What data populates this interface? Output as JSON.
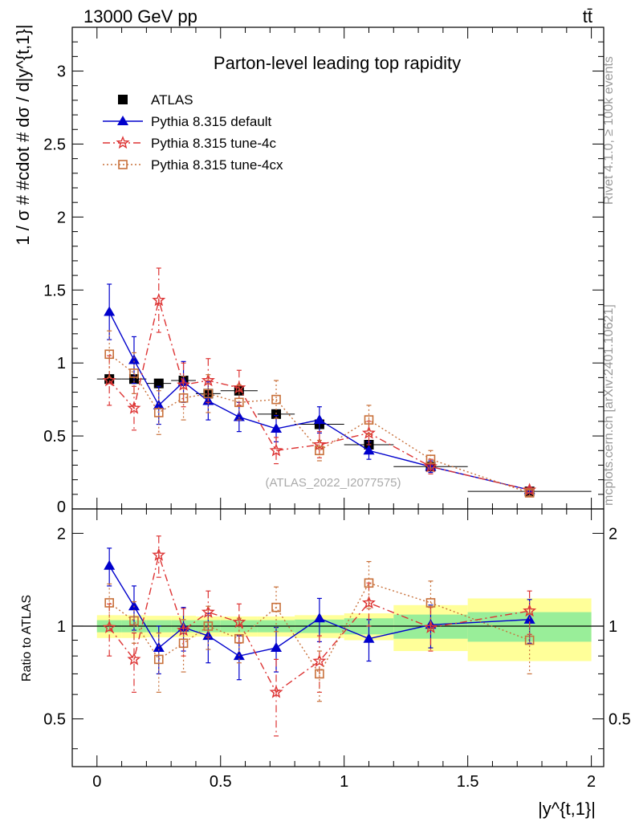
{
  "header": {
    "energy_label": "13000 GeV pp",
    "process_label": "tt̄"
  },
  "side_labels": {
    "rivet": "Rivet 4.1.0, ≥ 100k events",
    "mcplots": "mcplots.cern.ch [arXiv:2401.10621]"
  },
  "chart_data": [
    {
      "type": "scatter",
      "panel": "main",
      "title": "Parton-level leading top rapidity",
      "watermark": "(ATLAS_2022_I2077575)",
      "ylabel": "1 / σ # #cdot # dσ / d|y^{t,1}|",
      "xlim": [
        -0.1,
        2.05
      ],
      "ylim": [
        0,
        3.3
      ],
      "yticks": [
        {
          "value": 0.5,
          "label": "0.5"
        },
        {
          "value": 1,
          "label": "1"
        },
        {
          "value": 1.5,
          "label": "1.5"
        },
        {
          "value": 2,
          "label": "2"
        },
        {
          "value": 2.5,
          "label": "2.5"
        },
        {
          "value": 3,
          "label": "3"
        }
      ],
      "legend_position": "top-left",
      "series": [
        {
          "name": "ATLAS",
          "color": "#000000",
          "marker": "square-filled",
          "style": "points",
          "x": [
            0.05,
            0.15,
            0.25,
            0.35,
            0.45,
            0.575,
            0.725,
            0.9,
            1.1,
            1.35,
            1.75
          ],
          "y": [
            0.89,
            0.89,
            0.86,
            0.88,
            0.79,
            0.81,
            0.65,
            0.58,
            0.44,
            0.29,
            0.12
          ],
          "xerr": [
            0.05,
            0.05,
            0.05,
            0.05,
            0.05,
            0.075,
            0.075,
            0.1,
            0.1,
            0.15,
            0.25
          ]
        },
        {
          "name": "Pythia 8.315 default",
          "color": "#0000cc",
          "marker": "triangle-filled",
          "style": "solid",
          "x": [
            0.05,
            0.15,
            0.25,
            0.35,
            0.45,
            0.575,
            0.725,
            0.9,
            1.1,
            1.35,
            1.75
          ],
          "y": [
            1.35,
            1.02,
            0.71,
            0.87,
            0.74,
            0.63,
            0.55,
            0.61,
            0.4,
            0.29,
            0.13
          ],
          "err": [
            0.19,
            0.16,
            0.13,
            0.14,
            0.13,
            0.1,
            0.09,
            0.09,
            0.06,
            0.04,
            0.02
          ]
        },
        {
          "name": "Pythia 8.315 tune-4c",
          "color": "#dd3333",
          "marker": "star",
          "style": "dashdot",
          "x": [
            0.05,
            0.15,
            0.25,
            0.35,
            0.45,
            0.575,
            0.725,
            0.9,
            1.1,
            1.35,
            1.75
          ],
          "y": [
            0.88,
            0.69,
            1.43,
            0.85,
            0.88,
            0.83,
            0.4,
            0.44,
            0.52,
            0.29,
            0.13
          ],
          "err": [
            0.17,
            0.15,
            0.22,
            0.15,
            0.15,
            0.12,
            0.09,
            0.09,
            0.08,
            0.05,
            0.02
          ]
        },
        {
          "name": "Pythia 8.315 tune-4cx",
          "color": "#c8703a",
          "marker": "square-open",
          "style": "dotted",
          "x": [
            0.05,
            0.15,
            0.25,
            0.35,
            0.45,
            0.575,
            0.725,
            0.9,
            1.1,
            1.35,
            1.75
          ],
          "y": [
            1.06,
            0.93,
            0.66,
            0.76,
            0.79,
            0.73,
            0.75,
            0.4,
            0.61,
            0.34,
            0.11
          ],
          "err": [
            0.16,
            0.14,
            0.15,
            0.15,
            0.13,
            0.12,
            0.13,
            0.07,
            0.1,
            0.06,
            0.02
          ]
        }
      ]
    },
    {
      "type": "scatter",
      "panel": "ratio",
      "ylabel": "Ratio to ATLAS",
      "xlabel": "|y^{t,1}|",
      "xlim": [
        -0.1,
        2.05
      ],
      "ylim": [
        0.35,
        2.4
      ],
      "yscale": "log",
      "yticks": [
        {
          "value": 0.5,
          "label": "0.5"
        },
        {
          "value": 1,
          "label": "1"
        },
        {
          "value": 2,
          "label": "2"
        }
      ],
      "xticks": [
        {
          "value": 0,
          "label": "0"
        },
        {
          "value": 0.5,
          "label": "0.5"
        },
        {
          "value": 1,
          "label": "1"
        },
        {
          "value": 1.5,
          "label": "1.5"
        },
        {
          "value": 2,
          "label": "2"
        }
      ],
      "bands": {
        "bins": [
          0.0,
          0.1,
          0.2,
          0.3,
          0.4,
          0.5,
          0.65,
          0.8,
          1.0,
          1.2,
          1.5,
          2.0
        ],
        "stat_half": [
          0.045,
          0.045,
          0.045,
          0.045,
          0.045,
          0.045,
          0.045,
          0.05,
          0.06,
          0.09,
          0.11
        ],
        "total_half": [
          0.085,
          0.085,
          0.08,
          0.08,
          0.075,
          0.075,
          0.075,
          0.085,
          0.1,
          0.17,
          0.23
        ],
        "stat_color": "#99ee99",
        "total_color": "#ffff99"
      },
      "series": [
        {
          "name": "Pythia 8.315 default",
          "color": "#0000cc",
          "marker": "triangle-filled",
          "style": "solid",
          "x": [
            0.05,
            0.15,
            0.25,
            0.35,
            0.45,
            0.575,
            0.725,
            0.9,
            1.1,
            1.35,
            1.75
          ],
          "y": [
            1.57,
            1.16,
            0.85,
            0.99,
            0.93,
            0.8,
            0.85,
            1.06,
            0.91,
            1.01,
            1.05
          ],
          "err": [
            0.22,
            0.19,
            0.15,
            0.16,
            0.17,
            0.13,
            0.14,
            0.17,
            0.14,
            0.16,
            0.17
          ]
        },
        {
          "name": "Pythia 8.315 tune-4c",
          "color": "#dd3333",
          "marker": "star",
          "style": "dashdot",
          "x": [
            0.05,
            0.15,
            0.25,
            0.35,
            0.45,
            0.575,
            0.725,
            0.9,
            1.1,
            1.35,
            1.75
          ],
          "y": [
            0.99,
            0.78,
            1.7,
            0.97,
            1.11,
            1.03,
            0.61,
            0.77,
            1.19,
            0.99,
            1.12
          ],
          "err": [
            0.19,
            0.17,
            0.26,
            0.17,
            0.19,
            0.15,
            0.17,
            0.16,
            0.19,
            0.16,
            0.18
          ]
        },
        {
          "name": "Pythia 8.315 tune-4cx",
          "color": "#c8703a",
          "marker": "square-open",
          "style": "dotted",
          "x": [
            0.05,
            0.15,
            0.25,
            0.35,
            0.45,
            0.575,
            0.725,
            0.9,
            1.1,
            1.35,
            1.75
          ],
          "y": [
            1.19,
            1.04,
            0.78,
            0.88,
            1.0,
            0.91,
            1.15,
            0.7,
            1.38,
            1.19,
            0.9
          ],
          "err": [
            0.18,
            0.16,
            0.17,
            0.17,
            0.16,
            0.15,
            0.19,
            0.13,
            0.24,
            0.21,
            0.2
          ]
        }
      ]
    }
  ]
}
